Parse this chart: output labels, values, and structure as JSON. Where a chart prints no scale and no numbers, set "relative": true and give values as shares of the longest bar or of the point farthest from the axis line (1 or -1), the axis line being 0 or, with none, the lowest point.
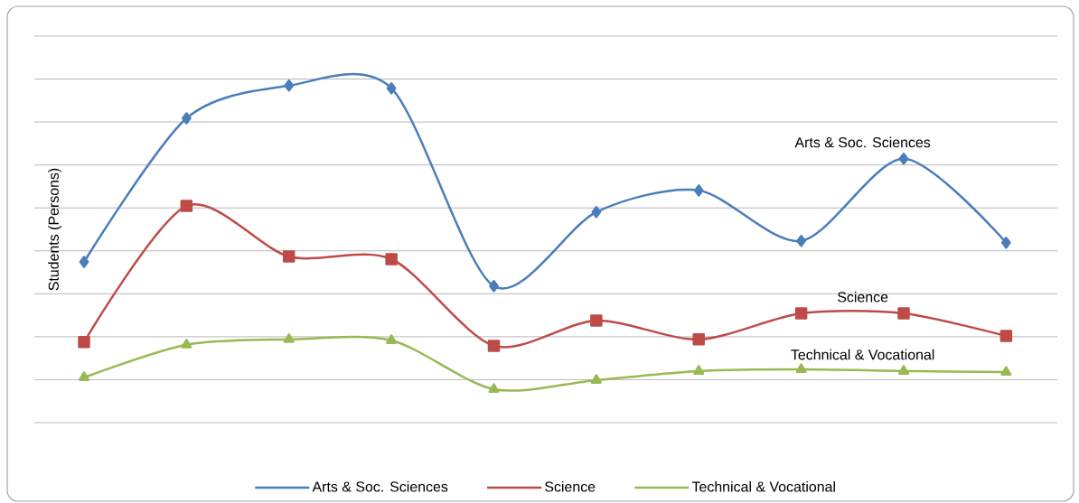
{
  "chart_data": {
    "type": "line",
    "relative": true,
    "ylabel": "Students (Persons)",
    "categories": [
      null,
      null,
      null,
      null,
      null,
      null,
      null,
      null,
      null,
      null
    ],
    "series": [
      {
        "name": "Arts & Soc. Sciences",
        "color": "#4a7ebb",
        "marker": "diamond",
        "values": [
          0.477,
          0.903,
          1.0,
          0.992,
          0.405,
          0.625,
          0.689,
          0.539,
          0.783,
          0.534
        ]
      },
      {
        "name": "Science",
        "color": "#be4b48",
        "marker": "square",
        "values": [
          0.239,
          0.643,
          0.493,
          0.485,
          0.228,
          0.303,
          0.247,
          0.324,
          0.324,
          0.257
        ]
      },
      {
        "name": "Technical & Vocational",
        "color": "#98b954",
        "marker": "triangle",
        "values": [
          0.134,
          0.231,
          0.247,
          0.244,
          0.099,
          0.126,
          0.153,
          0.158,
          0.153,
          0.15
        ]
      }
    ],
    "grid": "y",
    "legend": "bottom",
    "line_style": "solid"
  }
}
